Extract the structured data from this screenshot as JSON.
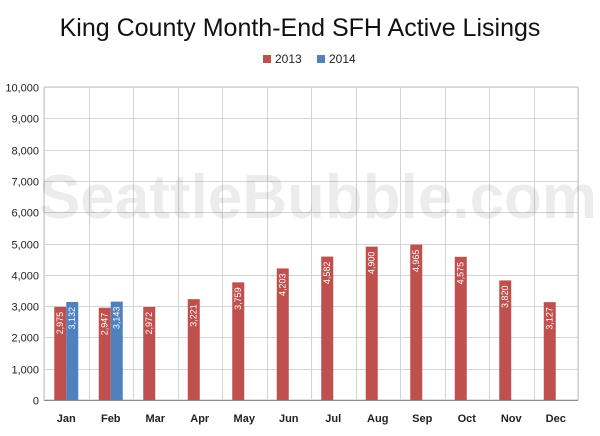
{
  "watermark": "SeattleBubble.com",
  "chart_data": {
    "type": "bar",
    "title": "King County Month-End SFH Active Lisings",
    "xlabel": "",
    "ylabel": "",
    "categories": [
      "Jan",
      "Feb",
      "Mar",
      "Apr",
      "May",
      "Jun",
      "Jul",
      "Aug",
      "Sep",
      "Oct",
      "Nov",
      "Dec"
    ],
    "series": [
      {
        "name": "2013",
        "color": "#c0504d",
        "values": [
          2975,
          2947,
          2972,
          3221,
          3759,
          4203,
          4582,
          4900,
          4965,
          4575,
          3820,
          3127
        ],
        "labels": [
          "2,975",
          "2,947",
          "2,972",
          "3,221",
          "3,759",
          "4,203",
          "4,582",
          "4,900",
          "4,965",
          "4,575",
          "3,820",
          "3,127"
        ]
      },
      {
        "name": "2014",
        "color": "#4f81bd",
        "values": [
          3132,
          3143,
          null,
          null,
          null,
          null,
          null,
          null,
          null,
          null,
          null,
          null
        ],
        "labels": [
          "3,132",
          "3,143",
          null,
          null,
          null,
          null,
          null,
          null,
          null,
          null,
          null,
          null
        ]
      }
    ],
    "ylim": [
      0,
      10000
    ],
    "yticks": [
      0,
      1000,
      2000,
      3000,
      4000,
      5000,
      6000,
      7000,
      8000,
      9000,
      10000
    ],
    "ytick_labels": [
      "0",
      "1,000",
      "2,000",
      "3,000",
      "4,000",
      "5,000",
      "6,000",
      "7,000",
      "8,000",
      "9,000",
      "10,000"
    ],
    "grid": true,
    "legend_position": "top-center"
  }
}
